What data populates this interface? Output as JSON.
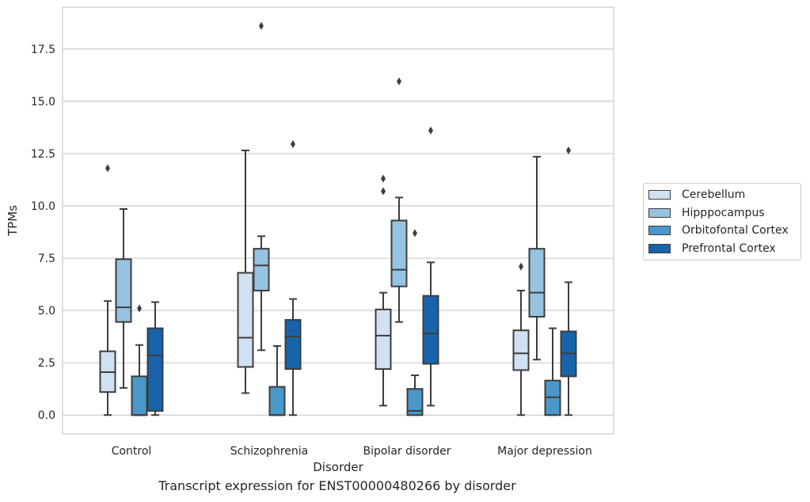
{
  "chart_data": {
    "type": "box",
    "xlabel": "Disorder",
    "ylabel": "TPMs",
    "ylim": [
      -0.9,
      19.5
    ],
    "yticks": [
      0.0,
      2.5,
      5.0,
      7.5,
      10.0,
      12.5,
      15.0,
      17.5
    ],
    "ytick_labels": [
      "0.0",
      "2.5",
      "5.0",
      "7.5",
      "10.0",
      "12.5",
      "15.0",
      "17.5"
    ],
    "grid": "horizontal",
    "legend_position": "right",
    "categories": [
      "Control",
      "Schizophrenia",
      "Bipolar disorder",
      "Major depression"
    ],
    "series": [
      {
        "name": "Cerebellum",
        "color": "#d0e1f2",
        "boxes": [
          {
            "whisker_low": 0.0,
            "q1": 1.1,
            "median": 2.05,
            "q3": 3.05,
            "whisker_high": 5.45,
            "outliers": [
              11.8
            ]
          },
          {
            "whisker_low": 1.05,
            "q1": 2.3,
            "median": 3.7,
            "q3": 6.8,
            "whisker_high": 12.65,
            "outliers": []
          },
          {
            "whisker_low": 0.45,
            "q1": 2.2,
            "median": 3.8,
            "q3": 5.05,
            "whisker_high": 5.85,
            "outliers": [
              10.7,
              11.3
            ]
          },
          {
            "whisker_low": 0.0,
            "q1": 2.15,
            "median": 2.95,
            "q3": 4.05,
            "whisker_high": 5.95,
            "outliers": [
              7.1
            ]
          }
        ]
      },
      {
        "name": "Hipppocampus",
        "color": "#94c4df",
        "boxes": [
          {
            "whisker_low": 1.3,
            "q1": 4.45,
            "median": 5.15,
            "q3": 7.45,
            "whisker_high": 9.85,
            "outliers": []
          },
          {
            "whisker_low": 3.1,
            "q1": 5.95,
            "median": 7.15,
            "q3": 7.95,
            "whisker_high": 8.55,
            "outliers": [
              18.6
            ]
          },
          {
            "whisker_low": 4.45,
            "q1": 6.15,
            "median": 6.95,
            "q3": 9.3,
            "whisker_high": 10.4,
            "outliers": [
              15.95
            ]
          },
          {
            "whisker_low": 2.65,
            "q1": 4.7,
            "median": 5.85,
            "q3": 7.95,
            "whisker_high": 12.35,
            "outliers": []
          }
        ]
      },
      {
        "name": "Orbitofontal Cortex",
        "color": "#4a98c9",
        "boxes": [
          {
            "whisker_low": 0.0,
            "q1": 0.0,
            "median": 0.0,
            "q3": 1.85,
            "whisker_high": 3.35,
            "outliers": [
              5.1
            ]
          },
          {
            "whisker_low": 0.0,
            "q1": 0.0,
            "median": 0.0,
            "q3": 1.35,
            "whisker_high": 3.3,
            "outliers": []
          },
          {
            "whisker_low": 0.0,
            "q1": 0.0,
            "median": 0.2,
            "q3": 1.25,
            "whisker_high": 1.9,
            "outliers": [
              8.7
            ]
          },
          {
            "whisker_low": 0.0,
            "q1": 0.0,
            "median": 0.85,
            "q3": 1.65,
            "whisker_high": 4.15,
            "outliers": []
          }
        ]
      },
      {
        "name": "Prefrontal Cortex",
        "color": "#1764ab",
        "boxes": [
          {
            "whisker_low": 0.0,
            "q1": 0.2,
            "median": 2.85,
            "q3": 4.15,
            "whisker_high": 5.4,
            "outliers": []
          },
          {
            "whisker_low": 0.0,
            "q1": 2.2,
            "median": 3.75,
            "q3": 4.55,
            "whisker_high": 5.55,
            "outliers": [
              12.95
            ]
          },
          {
            "whisker_low": 0.45,
            "q1": 2.45,
            "median": 3.9,
            "q3": 5.7,
            "whisker_high": 7.3,
            "outliers": [
              13.6
            ]
          },
          {
            "whisker_low": 0.0,
            "q1": 1.85,
            "median": 2.95,
            "q3": 4.0,
            "whisker_high": 6.35,
            "outliers": [
              12.65
            ]
          }
        ]
      }
    ]
  },
  "caption": "Transcript expression for ENST00000480266 by disorder"
}
